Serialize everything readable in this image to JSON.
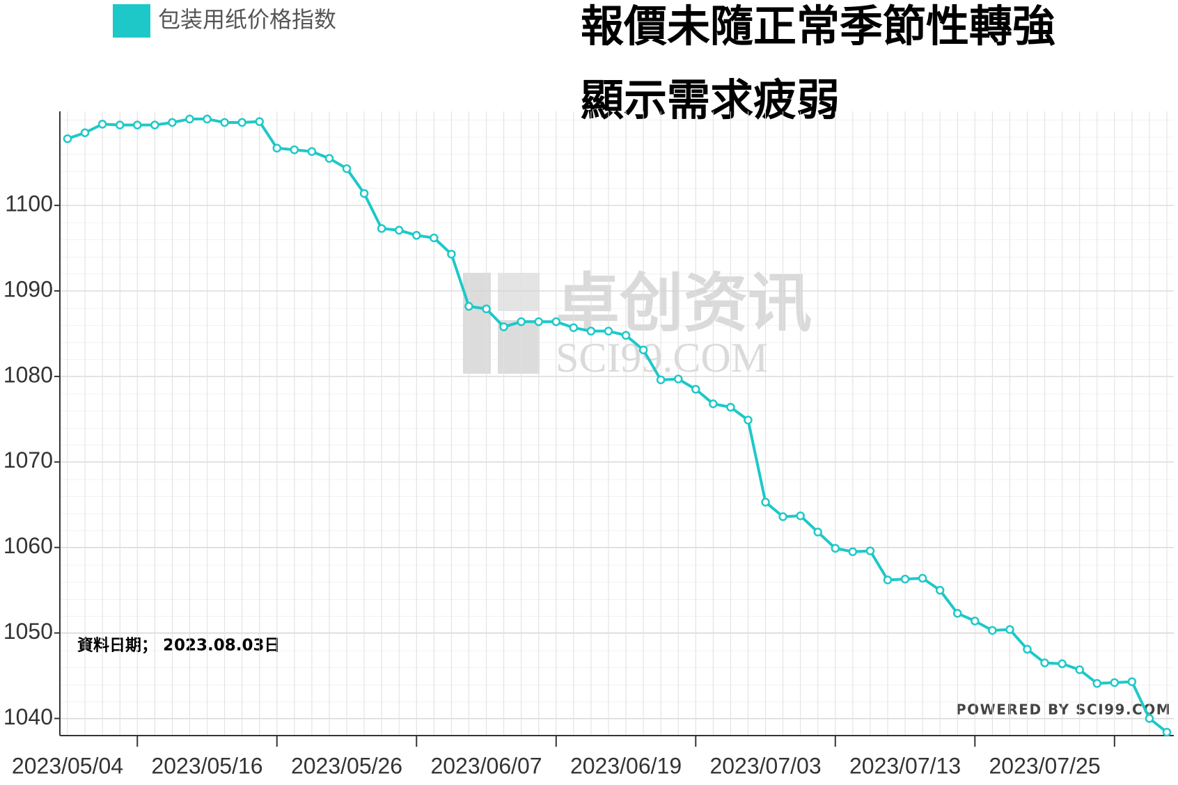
{
  "chart_data": {
    "type": "line",
    "title": [
      "報價未隨正常季節性轉強",
      "顯示需求疲弱"
    ],
    "annotation": "資料日期； 2023.08.03日",
    "watermark": [
      "卓创资讯",
      "SCI99.COM"
    ],
    "credit": "POWERED BY SCI99.COM",
    "categories": [
      "2023/05/04",
      null,
      null,
      null,
      null,
      null,
      null,
      null,
      "2023/05/16",
      null,
      null,
      null,
      null,
      null,
      null,
      null,
      "2023/05/26",
      null,
      null,
      null,
      null,
      null,
      null,
      null,
      "2023/06/07",
      null,
      null,
      null,
      null,
      null,
      null,
      null,
      "2023/06/19",
      null,
      null,
      null,
      null,
      null,
      null,
      null,
      "2023/07/03",
      null,
      null,
      null,
      null,
      null,
      null,
      null,
      "2023/07/13",
      null,
      null,
      null,
      null,
      null,
      null,
      null,
      "2023/07/25",
      null,
      null,
      null,
      null,
      null,
      null,
      null
    ],
    "series": [
      {
        "name": "包装用纸价格指数",
        "color": "#1ec8c8",
        "values": [
          1107.8,
          1108.5,
          1109.5,
          1109.4,
          1109.4,
          1109.4,
          1109.7,
          1110.1,
          1110.1,
          1109.7,
          1109.7,
          1109.8,
          1106.7,
          1106.5,
          1106.3,
          1105.5,
          1104.3,
          1101.4,
          1097.3,
          1097.1,
          1096.5,
          1096.2,
          1094.3,
          1088.2,
          1087.9,
          1085.8,
          1086.4,
          1086.4,
          1086.4,
          1085.7,
          1085.3,
          1085.3,
          1084.8,
          1083.1,
          1079.6,
          1079.7,
          1078.5,
          1076.8,
          1076.4,
          1074.9,
          1065.3,
          1063.6,
          1063.7,
          1061.8,
          1059.9,
          1059.5,
          1059.6,
          1056.2,
          1056.3,
          1056.4,
          1055.0,
          1052.3,
          1051.4,
          1050.3,
          1050.4,
          1048.1,
          1046.5,
          1046.4,
          1045.7,
          1044.1,
          1044.2,
          1044.3,
          1040.0,
          1038.4
        ]
      }
    ],
    "ylim": [
      1038,
      1111
    ],
    "yticks": [
      1040,
      1050,
      1060,
      1070,
      1080,
      1090,
      1100
    ],
    "grid": true
  }
}
